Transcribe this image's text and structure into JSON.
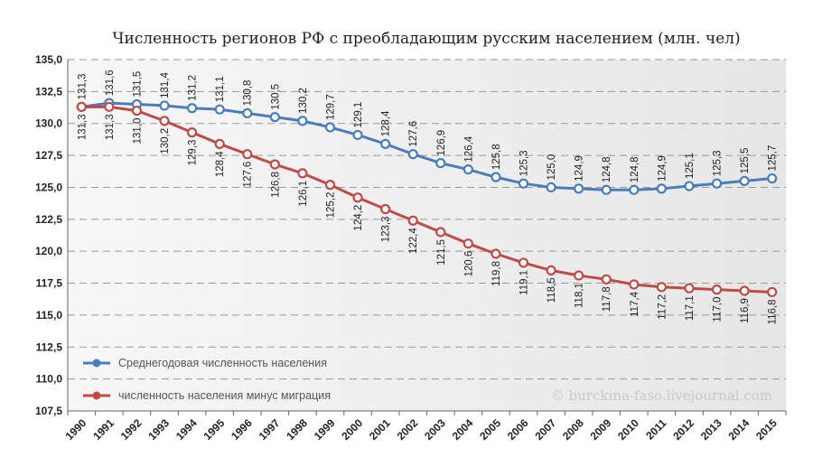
{
  "chart_data": {
    "type": "line",
    "title": "Численность регионов РФ с преобладающим русским населением (млн. чел)",
    "categories": [
      "1990",
      "1991",
      "1992",
      "1993",
      "1994",
      "1995",
      "1996",
      "1997",
      "1998",
      "1999",
      "2000",
      "2001",
      "2002",
      "2003",
      "2004",
      "2005",
      "2006",
      "2007",
      "2008",
      "2009",
      "2010",
      "2011",
      "2012",
      "2013",
      "2014",
      "2015"
    ],
    "ylim": [
      107.5,
      135.0
    ],
    "yticks": [
      "107,5",
      "110,0",
      "112,5",
      "115,0",
      "117,5",
      "120,0",
      "122,5",
      "125,0",
      "127,5",
      "130,0",
      "132,5",
      "135,0"
    ],
    "grid": "horizontal dashed",
    "legend": "bottom-left",
    "series": [
      {
        "name": "Среднегодовая численность населения",
        "color": "#4a7ebb",
        "values": [
          131.3,
          131.6,
          131.5,
          131.4,
          131.2,
          131.1,
          130.8,
          130.5,
          130.2,
          129.7,
          129.1,
          128.4,
          127.6,
          126.9,
          126.4,
          125.8,
          125.3,
          125.0,
          124.9,
          124.8,
          124.8,
          124.9,
          125.1,
          125.3,
          125.5,
          125.7
        ]
      },
      {
        "name": "численность населения минус миграция",
        "color": "#be4b48",
        "values": [
          131.3,
          131.3,
          131.0,
          130.2,
          129.3,
          128.4,
          127.6,
          126.8,
          126.1,
          125.2,
          124.2,
          123.3,
          122.4,
          121.5,
          120.6,
          119.8,
          119.1,
          118.5,
          118.1,
          117.8,
          117.4,
          117.2,
          117.1,
          117.0,
          116.9,
          116.8
        ]
      }
    ]
  },
  "watermark": "© burckina-faso.livejournal.com"
}
